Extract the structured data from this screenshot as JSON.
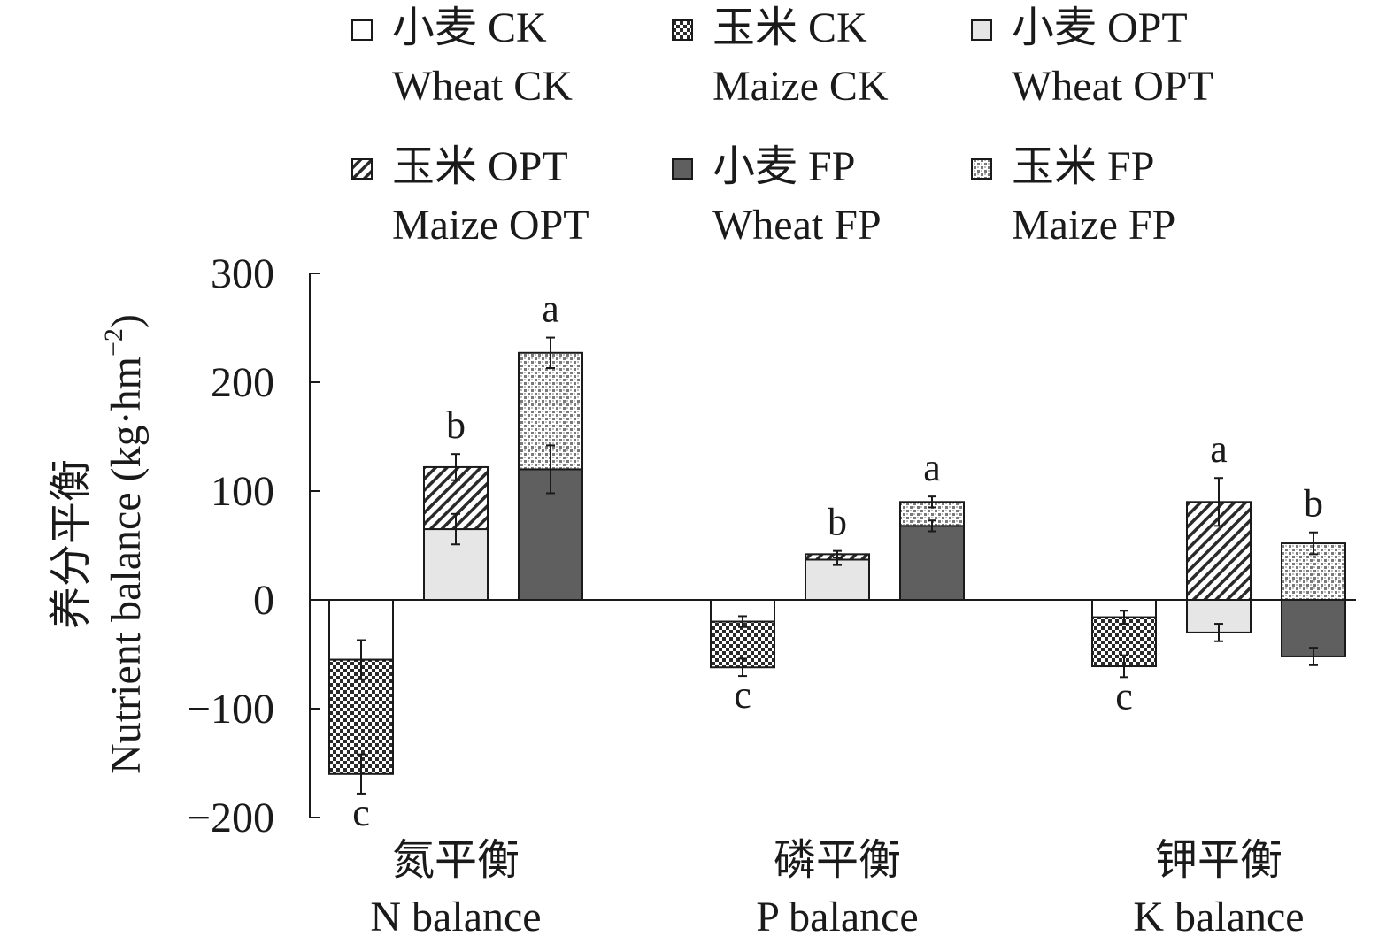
{
  "chart_data": {
    "type": "bar",
    "stacked": true,
    "ylabel_cn": "养分平衡",
    "ylabel_en": "Nutrient balance (kg·hm",
    "ylabel_sup": "−2",
    "ylabel_close": ")",
    "ylim": [
      -200,
      300
    ],
    "yticks": [
      {
        "value": 300,
        "label": "300"
      },
      {
        "value": 200,
        "label": "200"
      },
      {
        "value": 100,
        "label": "100"
      },
      {
        "value": 0,
        "label": "0"
      },
      {
        "value": -100,
        "label": "−100"
      },
      {
        "value": -200,
        "label": "−200"
      }
    ],
    "legend": [
      {
        "key": "wheat_ck",
        "cn": "小麦 CK",
        "en": "Wheat CK",
        "pattern": "white"
      },
      {
        "key": "maize_ck",
        "cn": "玉米 CK",
        "en": "Maize CK",
        "pattern": "checker"
      },
      {
        "key": "wheat_opt",
        "cn": "小麦 OPT",
        "en": "Wheat OPT",
        "pattern": "lightgray"
      },
      {
        "key": "maize_opt",
        "cn": "玉米 OPT",
        "en": "Maize OPT",
        "pattern": "diagonal"
      },
      {
        "key": "wheat_fp",
        "cn": "小麦 FP",
        "en": "Wheat FP",
        "pattern": "darkgray"
      },
      {
        "key": "maize_fp",
        "cn": "玉米 FP",
        "en": "Maize FP",
        "pattern": "dots"
      }
    ],
    "groups": [
      {
        "cn": "氮平衡",
        "en": "N balance",
        "bars": [
          {
            "treatment": "CK",
            "wheat": -55,
            "maize": -105,
            "wheat_err": 18,
            "maize_err": 18,
            "letter": "c"
          },
          {
            "treatment": "OPT",
            "wheat": 65,
            "maize": 57,
            "wheat_err": 14,
            "maize_err": 12,
            "letter": "b"
          },
          {
            "treatment": "FP",
            "wheat": 120,
            "maize": 107,
            "wheat_err": 22,
            "maize_err": 14,
            "letter": "a"
          }
        ]
      },
      {
        "cn": "磷平衡",
        "en": "P balance",
        "bars": [
          {
            "treatment": "CK",
            "wheat": -20,
            "maize": -42,
            "wheat_err": 5,
            "maize_err": 8,
            "letter": "c"
          },
          {
            "treatment": "OPT",
            "wheat": 37,
            "maize": 5,
            "wheat_err": 5,
            "maize_err": 3,
            "letter": "b"
          },
          {
            "treatment": "FP",
            "wheat": 68,
            "maize": 22,
            "wheat_err": 5,
            "maize_err": 5,
            "letter": "a"
          }
        ]
      },
      {
        "cn": "钾平衡",
        "en": "K balance",
        "bars": [
          {
            "treatment": "CK",
            "wheat": -16,
            "maize": -45,
            "wheat_err": 6,
            "maize_err": 10,
            "letter": "c"
          },
          {
            "treatment": "OPT",
            "wheat": -30,
            "maize": 90,
            "wheat_err": 8,
            "maize_err": 22,
            "letter": "a"
          },
          {
            "treatment": "FP",
            "wheat": -52,
            "maize": 52,
            "wheat_err": 8,
            "maize_err": 10,
            "letter": "b"
          }
        ]
      }
    ]
  }
}
